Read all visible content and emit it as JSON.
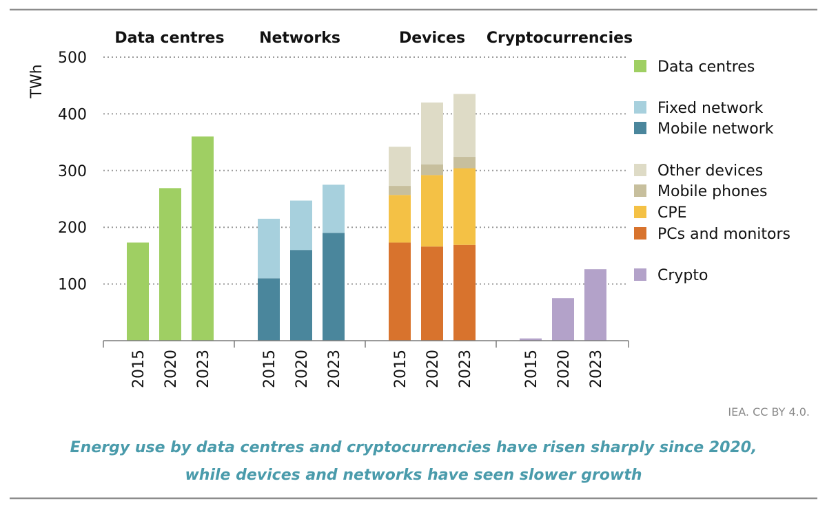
{
  "chart_data": {
    "type": "bar",
    "stacked": true,
    "ylabel": "TWh",
    "ylim": [
      0,
      500
    ],
    "yticks": [
      100,
      200,
      300,
      400,
      500
    ],
    "grid": "horizontal dotted",
    "legend_position": "right",
    "categories": [
      "2015",
      "2020",
      "2023"
    ],
    "groups": [
      {
        "title": "Data centres",
        "series": [
          {
            "name": "Data centres",
            "color": "#9fcf63",
            "values": [
              173,
              269,
              360
            ]
          }
        ]
      },
      {
        "title": "Networks",
        "series": [
          {
            "name": "Mobile network",
            "color": "#4a869c",
            "values": [
              110,
              160,
              190
            ]
          },
          {
            "name": "Fixed network",
            "color": "#a7d0dd",
            "values": [
              105,
              87,
              85
            ]
          }
        ]
      },
      {
        "title": "Devices",
        "series": [
          {
            "name": "PCs and monitors",
            "color": "#d8732d",
            "values": [
              173,
              166,
              169
            ]
          },
          {
            "name": "CPE",
            "color": "#f4c145",
            "values": [
              84,
              126,
              135
            ]
          },
          {
            "name": "Mobile phones",
            "color": "#c7bf9d",
            "values": [
              16,
              19,
              20
            ]
          },
          {
            "name": "Other devices",
            "color": "#dedbc6",
            "values": [
              69,
              109,
              111
            ]
          }
        ]
      },
      {
        "title": "Cryptocurrencies",
        "series": [
          {
            "name": "Crypto",
            "color": "#b3a2c9",
            "values": [
              4,
              75,
              126
            ]
          }
        ]
      }
    ],
    "legend": [
      {
        "label": "Data centres",
        "color": "#9fcf63"
      },
      {
        "label": "Fixed network",
        "color": "#a7d0dd"
      },
      {
        "label": "Mobile network",
        "color": "#4a869c"
      },
      {
        "label": "Other devices",
        "color": "#dedbc6"
      },
      {
        "label": "Mobile phones",
        "color": "#c7bf9d"
      },
      {
        "label": "CPE",
        "color": "#f4c145"
      },
      {
        "label": "PCs and monitors",
        "color": "#d8732d"
      },
      {
        "label": "Crypto",
        "color": "#b3a2c9"
      }
    ],
    "source": "IEA. CC BY 4.0.",
    "caption": [
      "Energy use by data centres and cryptocurrencies have risen sharply since 2020,",
      "while devices and networks have seen slower growth"
    ]
  }
}
